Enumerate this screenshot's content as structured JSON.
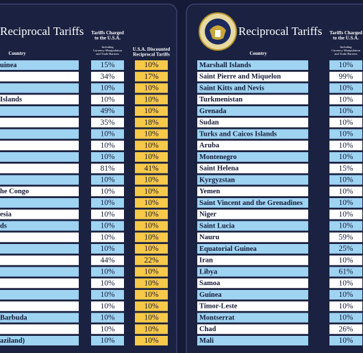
{
  "left_panel": {
    "title": "Reciprocal Tariffs",
    "headers": {
      "country": "Country",
      "charged": [
        "Tariffs Charged",
        "to the U.S.A."
      ],
      "charged_note": [
        "Including",
        "Currency Manipulation",
        "and Trade Barriers"
      ],
      "discounted": [
        "U.S.A. Discounted",
        "Reciprocal Tariffs"
      ]
    },
    "rows": [
      [
        "uinea",
        "15%",
        "10%"
      ],
      [
        null,
        "34%",
        "17%"
      ],
      [
        null,
        "10%",
        "10%"
      ],
      [
        "Islands",
        "10%",
        "10%"
      ],
      [
        null,
        "49%",
        "10%"
      ],
      [
        null,
        "35%",
        "18%"
      ],
      [
        null,
        "10%",
        "10%"
      ],
      [
        null,
        "10%",
        "10%"
      ],
      [
        null,
        "10%",
        "10%"
      ],
      [
        null,
        "81%",
        "41%"
      ],
      [
        null,
        "10%",
        "10%"
      ],
      [
        "he Congo",
        "10%",
        "10%"
      ],
      [
        null,
        "10%",
        "10%"
      ],
      [
        "esia",
        "10%",
        "10%"
      ],
      [
        "ds",
        "10%",
        "10%"
      ],
      [
        null,
        "10%",
        "10%"
      ],
      [
        null,
        "10%",
        "10%"
      ],
      [
        null,
        "44%",
        "22%"
      ],
      [
        null,
        "10%",
        "10%"
      ],
      [
        null,
        "10%",
        "10%"
      ],
      [
        null,
        "10%",
        "10%"
      ],
      [
        null,
        "10%",
        "10%"
      ],
      [
        "Barbuda",
        "10%",
        "10%"
      ],
      [
        null,
        "10%",
        "10%"
      ],
      [
        "aziland)",
        "10%",
        "10%"
      ]
    ]
  },
  "right_panel": {
    "title": "Reciprocal Tariffs",
    "headers": {
      "country": "Country",
      "charged": [
        "Tariffs Charged",
        "to the U.S.A."
      ],
      "charged_note": [
        "Including",
        "Currency Manipulation",
        "and Trade Barriers"
      ]
    },
    "rows": [
      [
        "Marshall Islands",
        "10%"
      ],
      [
        "Saint Pierre and Miquelon",
        "99%"
      ],
      [
        "Saint Kitts and Nevis",
        "10%"
      ],
      [
        "Turkmenistan",
        "10%"
      ],
      [
        "Grenada",
        "10%"
      ],
      [
        "Sudan",
        "10%"
      ],
      [
        "Turks and Caicos Islands",
        "10%"
      ],
      [
        "Aruba",
        "10%"
      ],
      [
        "Montenegro",
        "10%"
      ],
      [
        "Saint Helena",
        "15%"
      ],
      [
        "Kyrgyzstan",
        "10%"
      ],
      [
        "Yemen",
        "10%"
      ],
      [
        "Saint Vincent and the Grenadines",
        "10%"
      ],
      [
        "Niger",
        "10%"
      ],
      [
        "Saint Lucia",
        "10%"
      ],
      [
        "Nauru",
        "59%"
      ],
      [
        "Equatorial Guinea",
        "25%"
      ],
      [
        "Iran",
        "10%"
      ],
      [
        "Libya",
        "61%"
      ],
      [
        "Samoa",
        "10%"
      ],
      [
        "Guinea",
        "10%"
      ],
      [
        "Timor-Leste",
        "10%"
      ],
      [
        "Montserrat",
        "10%"
      ],
      [
        "Chad",
        "26%"
      ],
      [
        "Mali",
        "10%"
      ]
    ]
  }
}
